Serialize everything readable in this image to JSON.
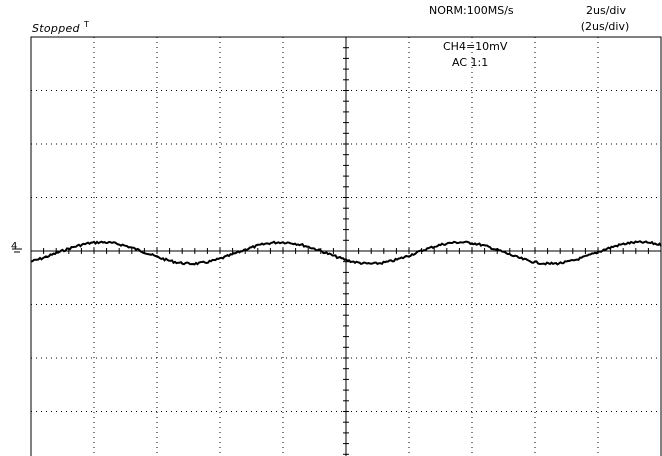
{
  "status": {
    "run_state": "Stopped",
    "trigger_marker": "T"
  },
  "timebase": {
    "mode_rate": "NORM:100MS/s",
    "per_div": "2us/div",
    "per_div_zoom": "(2us/div)"
  },
  "channel": {
    "scale": "CH4=10mV",
    "coupling": "AC  1:1",
    "ground_marker": "4"
  },
  "waveform": {
    "shape": "sine",
    "units": "mV",
    "amplitude_mV": 2.0,
    "period_us": 5.7,
    "time_per_div_us": 2,
    "volts_per_div_mV": 10,
    "divisions_x": 10,
    "divisions_y": 8
  },
  "colors": {
    "background": "#ffffff",
    "grid": "#000000",
    "trace": "#000000"
  }
}
